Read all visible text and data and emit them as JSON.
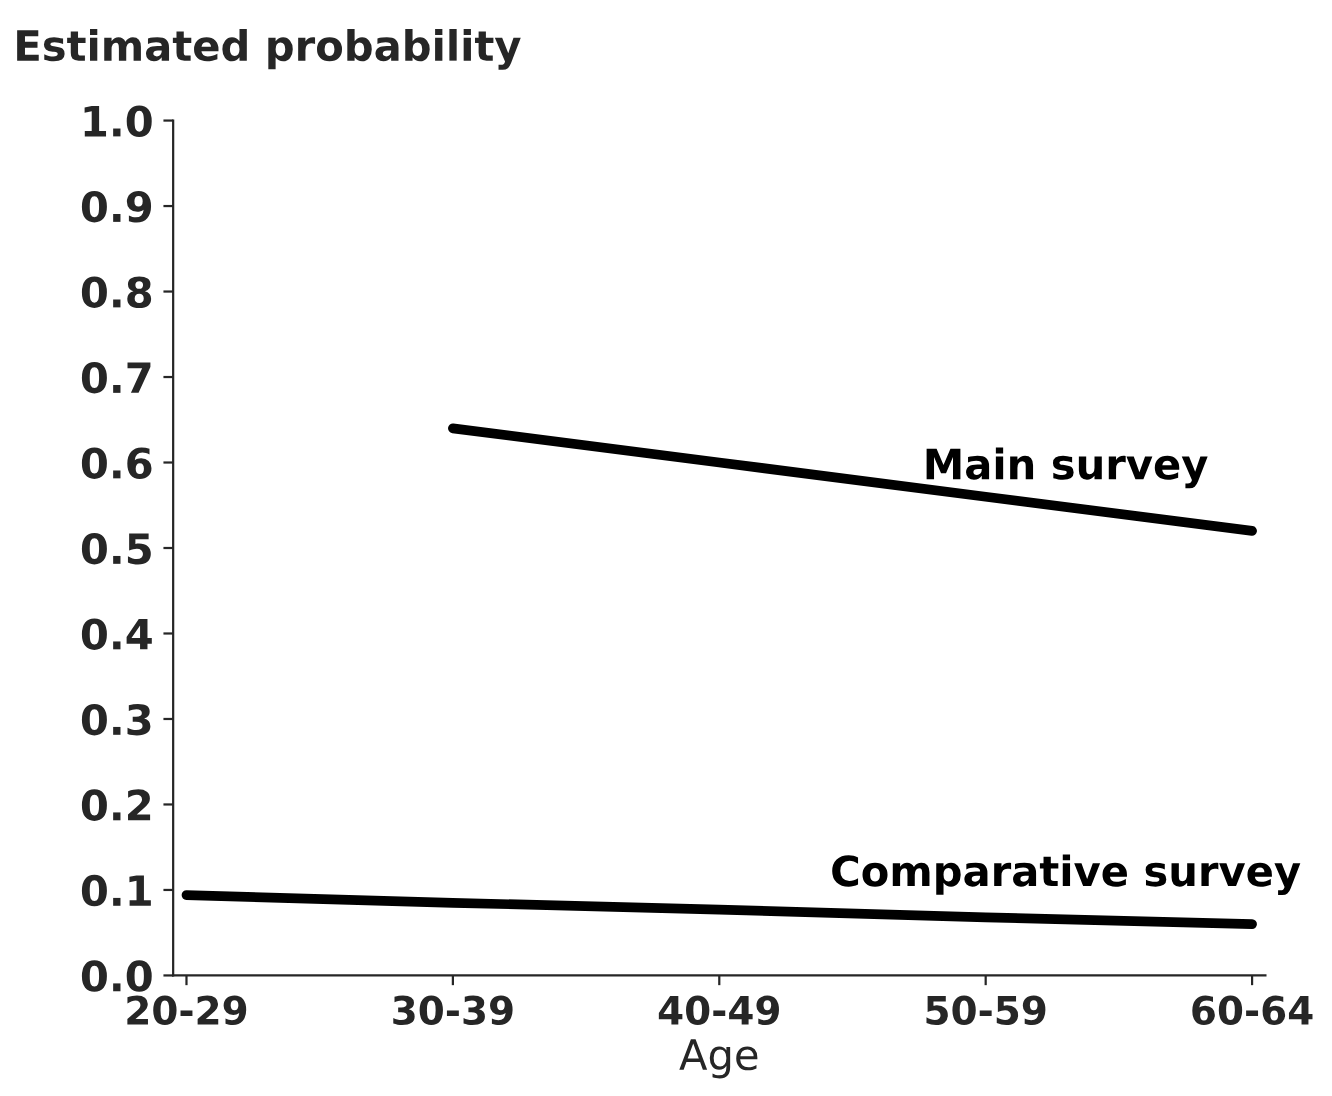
{
  "chart_data": {
    "type": "line",
    "title": "Estimated probability",
    "xlabel": "Age",
    "categories": [
      "20-29",
      "30-39",
      "40-49",
      "50-59",
      "60-64"
    ],
    "series": [
      {
        "name": "Main survey",
        "color": "#000000",
        "values": [
          null,
          0.64,
          0.6,
          0.56,
          0.52
        ]
      },
      {
        "name": "Comparative survey",
        "color": "#000000",
        "values": [
          0.094,
          0.085,
          0.077,
          0.068,
          0.06
        ]
      }
    ],
    "ylim": [
      0,
      1.0
    ],
    "yticks": [
      {
        "value": 0,
        "label": "0.0"
      },
      0.1,
      0.2,
      0.3,
      0.4,
      0.5,
      0.6,
      0.7,
      0.8,
      0.9,
      {
        "value": 1,
        "label": "1.0"
      }
    ],
    "grid": false,
    "legend": false,
    "marker": "none",
    "line_style": "solid"
  }
}
